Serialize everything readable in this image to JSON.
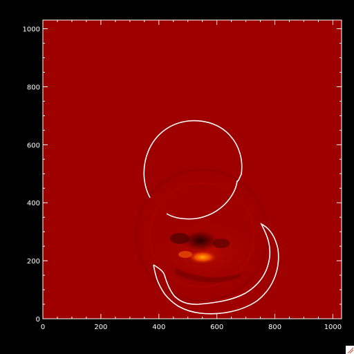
{
  "chart_data": {
    "type": "heatmap",
    "x_range": [
      0,
      1030
    ],
    "y_range": [
      0,
      1030
    ],
    "x_ticks": [
      0,
      200,
      400,
      600,
      800,
      1000
    ],
    "y_ticks": [
      0,
      200,
      400,
      600,
      800,
      1000
    ],
    "x_tick_labels": [
      "0",
      "200",
      "400",
      "600",
      "800",
      "1000"
    ],
    "y_tick_labels": [
      "0",
      "200",
      "400",
      "600",
      "800",
      "1000"
    ],
    "colors": {
      "background": "#000000",
      "image": "#9e0000",
      "axes": "#ffffff",
      "contour": "#ffffff"
    }
  }
}
